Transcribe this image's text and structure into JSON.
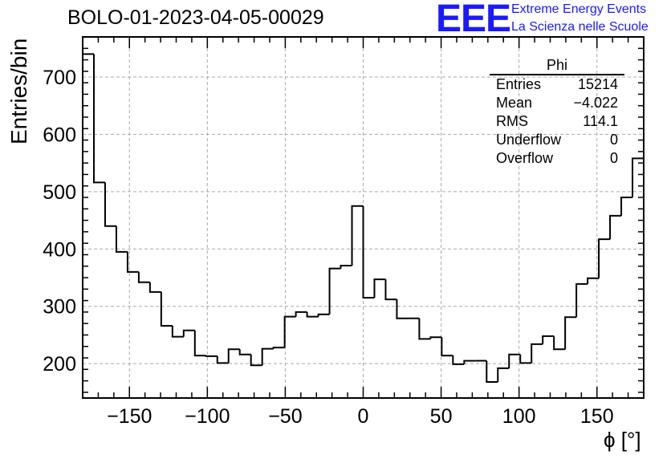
{
  "header": {
    "title": "BOLO-01-2023-04-05-00029",
    "logo_text": "EEE",
    "logo_line1": "Extreme Energy Events",
    "logo_line2": "La Scienza nelle Scuole",
    "logo_color": "#1a1aff"
  },
  "stats_box": {
    "title": "Phi",
    "rows": [
      {
        "label": "Entries",
        "value": "15214"
      },
      {
        "label": "Mean",
        "value": "−4.022"
      },
      {
        "label": "RMS",
        "value": "114.1"
      },
      {
        "label": "Underflow",
        "value": "0"
      },
      {
        "label": "Overflow",
        "value": "0"
      }
    ]
  },
  "chart_data": {
    "type": "bar",
    "title": "BOLO-01-2023-04-05-00029",
    "xlabel": "ϕ [°]",
    "ylabel": "Entries/bin",
    "xlim": [
      -180,
      180
    ],
    "ylim": [
      140,
      770
    ],
    "bin_width": 7.2,
    "x_ticks": [
      -150,
      -100,
      -50,
      0,
      50,
      100,
      150
    ],
    "x_tick_labels": [
      "−150",
      "−100",
      "−50",
      "0",
      "50",
      "100",
      "150"
    ],
    "y_ticks": [
      200,
      300,
      400,
      500,
      600,
      700
    ],
    "y_tick_labels": [
      "200",
      "300",
      "400",
      "500",
      "600",
      "700"
    ],
    "grid": true,
    "legend": "top-right stats box",
    "bin_edges_start": -180,
    "values": [
      740,
      516,
      440,
      395,
      360,
      342,
      325,
      266,
      247,
      258,
      214,
      213,
      201,
      225,
      216,
      197,
      226,
      228,
      282,
      290,
      282,
      286,
      366,
      371,
      475,
      315,
      347,
      312,
      279,
      279,
      243,
      246,
      214,
      199,
      205,
      205,
      168,
      192,
      216,
      201,
      234,
      248,
      225,
      281,
      339,
      349,
      417,
      458,
      490,
      558
    ]
  }
}
